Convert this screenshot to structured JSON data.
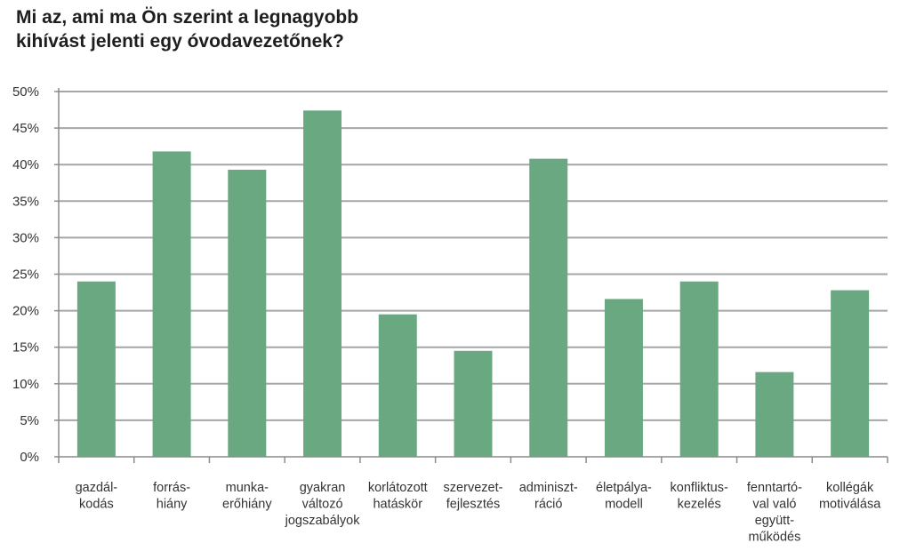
{
  "chart_data": {
    "type": "bar",
    "title": "Mi az, ami ma Ön szerint a legnagyobb\nkihívást jelenti egy óvodavezetőnek?",
    "xlabel": "",
    "ylabel": "",
    "ylim": [
      0,
      50
    ],
    "grid": true,
    "legend": "none",
    "y_ticks": [
      "0%",
      "5%",
      "10%",
      "15%",
      "20%",
      "25%",
      "30%",
      "35%",
      "40%",
      "45%",
      "50%"
    ],
    "categories": [
      [
        "gazdál-",
        "kodás"
      ],
      [
        "forrás-",
        "hiány"
      ],
      [
        "munka-",
        "erőhiány"
      ],
      [
        "gyakran",
        "változó",
        "jogszabályok"
      ],
      [
        "korlátozott",
        "hatáskör"
      ],
      [
        "szervezet-",
        "fejlesztés"
      ],
      [
        "adminiszt-",
        "ráció"
      ],
      [
        "életpálya-",
        "modell"
      ],
      [
        "konfliktus-",
        "kezelés"
      ],
      [
        "fenntartó-",
        "val való",
        "együtt-",
        "működés"
      ],
      [
        "kollégák",
        "motiválása"
      ]
    ],
    "values": [
      24,
      41.8,
      39.3,
      47.4,
      19.5,
      14.5,
      40.8,
      21.6,
      24,
      11.6,
      22.8
    ],
    "colors": {
      "bar": "#6aa882",
      "grid": "#a6a6a6",
      "axis": "#8c8c8c"
    }
  }
}
